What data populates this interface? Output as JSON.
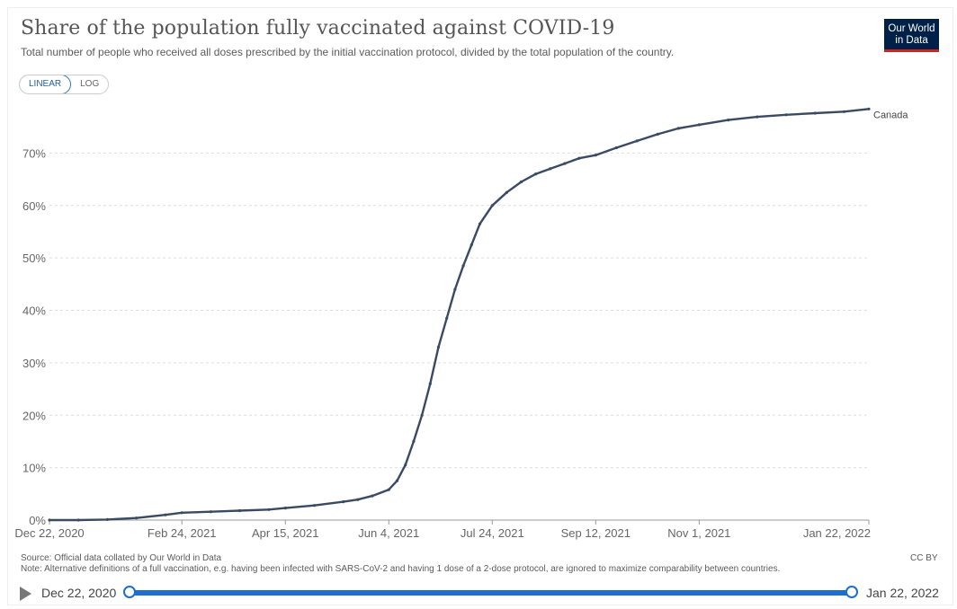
{
  "header": {
    "title": "Share of the population fully vaccinated against COVID-19",
    "subtitle": "Total number of people who received all doses prescribed by the initial vaccination protocol, divided by the total population of the country.",
    "logo_line1": "Our World",
    "logo_line2": "in Data"
  },
  "scale_toggle": {
    "linear_label": "LINEAR",
    "log_label": "LOG",
    "selected": "LINEAR"
  },
  "footer": {
    "source": "Source: Official data collated by Our World in Data",
    "note": "Note: Alternative definitions of a full vaccination, e.g. having been infected with SARS-CoV-2 and having 1 dose of a 2-dose protocol, are ignored to maximize comparability between countries.",
    "license": "CC BY"
  },
  "timeline": {
    "start_label": "Dec 22, 2020",
    "end_label": "Jan 22, 2022"
  },
  "colors": {
    "line": "#3b4a63",
    "grid": "#dddddd",
    "accent": "#1d6ecf",
    "logo_bg": "#002147",
    "logo_bar": "#ce261e"
  },
  "chart_data": {
    "type": "line",
    "title": "Share of the population fully vaccinated against COVID-19",
    "xlabel": "",
    "ylabel": "",
    "y_unit": "%",
    "ylim": [
      0,
      80
    ],
    "y_ticks": [
      0,
      10,
      20,
      30,
      40,
      50,
      60,
      70
    ],
    "y_tick_labels": [
      "0%",
      "10%",
      "20%",
      "30%",
      "40%",
      "50%",
      "60%",
      "70%"
    ],
    "x_tick_labels": [
      "Dec 22, 2020",
      "Feb 24, 2021",
      "Apr 15, 2021",
      "Jun 4, 2021",
      "Jul 24, 2021",
      "Sep 12, 2021",
      "Nov 1, 2021",
      "Jan 22, 2022"
    ],
    "x_ticks": [
      "2020-12-22",
      "2021-02-24",
      "2021-04-15",
      "2021-06-04",
      "2021-07-24",
      "2021-09-12",
      "2021-11-01",
      "2022-01-22"
    ],
    "xlim": [
      "2020-12-22",
      "2022-01-22"
    ],
    "grid": true,
    "series": [
      {
        "name": "Canada",
        "x": [
          "2020-12-22",
          "2021-01-05",
          "2021-01-19",
          "2021-02-02",
          "2021-02-16",
          "2021-02-24",
          "2021-03-10",
          "2021-03-24",
          "2021-04-07",
          "2021-04-15",
          "2021-04-29",
          "2021-05-13",
          "2021-05-20",
          "2021-05-27",
          "2021-06-04",
          "2021-06-08",
          "2021-06-12",
          "2021-06-16",
          "2021-06-20",
          "2021-06-24",
          "2021-06-28",
          "2021-07-02",
          "2021-07-06",
          "2021-07-10",
          "2021-07-14",
          "2021-07-18",
          "2021-07-24",
          "2021-07-31",
          "2021-08-07",
          "2021-08-14",
          "2021-08-21",
          "2021-08-28",
          "2021-09-04",
          "2021-09-12",
          "2021-09-22",
          "2021-10-02",
          "2021-10-12",
          "2021-10-22",
          "2021-11-01",
          "2021-11-15",
          "2021-11-29",
          "2021-12-13",
          "2021-12-27",
          "2022-01-10",
          "2022-01-22"
        ],
        "values": [
          0.0,
          0.0,
          0.1,
          0.4,
          1.0,
          1.4,
          1.6,
          1.8,
          2.0,
          2.3,
          2.8,
          3.5,
          3.9,
          4.6,
          5.8,
          7.5,
          10.5,
          15.0,
          20.0,
          26.0,
          33.0,
          38.5,
          44.0,
          48.5,
          52.5,
          56.5,
          60.0,
          62.5,
          64.5,
          66.0,
          67.0,
          68.0,
          69.0,
          69.6,
          71.0,
          72.3,
          73.6,
          74.7,
          75.4,
          76.3,
          76.9,
          77.3,
          77.6,
          77.9,
          78.4
        ]
      }
    ]
  }
}
